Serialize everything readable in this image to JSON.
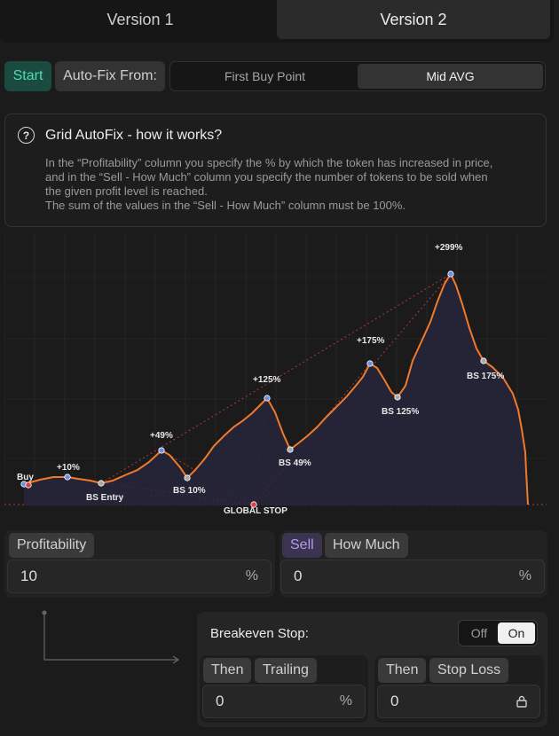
{
  "tabs": [
    "Version 1",
    "Version 2"
  ],
  "controls": {
    "start": "Start",
    "autofix_label": "Auto-Fix From:",
    "option_first": "First Buy Point",
    "option_mid": "Mid AVG"
  },
  "info": {
    "title": "Grid AutoFix - how it works?",
    "line1": "In the “Profitability” column you specify the % by which the token has increased in price,",
    "line2": "and in the “Sell - How Much” column you specify the number of tokens to be sold when",
    "line3": "the given profit level is reached.",
    "line4": "The sum of the values in the “Sell - How Much” column must be 100%."
  },
  "chart_data": {
    "type": "line",
    "labels": {
      "buy": "Buy",
      "p10": "+10%",
      "bs_entry": "BS Entry",
      "p49": "+49%",
      "bs10": "BS 10%",
      "p125": "+125%",
      "bs49": "BS 49%",
      "global_stop": "GLOBAL STOP",
      "p175": "+175%",
      "bs125": "BS 125%",
      "p299": "+299%",
      "bs175": "BS 175%"
    },
    "colors": {
      "line": "#f07a2a",
      "fill": "#26263a",
      "point": "#6d8fe0",
      "stop": "#e04040",
      "dashed": "#b03a3a"
    }
  },
  "form": {
    "profitability_label": "Profitability",
    "profitability_value": "10",
    "sell_label": "Sell",
    "howmuch_label": "How Much",
    "sell_value": "0",
    "unit": "%"
  },
  "breakeven": {
    "label": "Breakeven Stop:",
    "off": "Off",
    "on": "On",
    "then1": "Then",
    "trailing": "Trailing",
    "trailing_value": "0",
    "then2": "Then",
    "stop_loss": "Stop Loss",
    "stop_loss_value": "0"
  }
}
